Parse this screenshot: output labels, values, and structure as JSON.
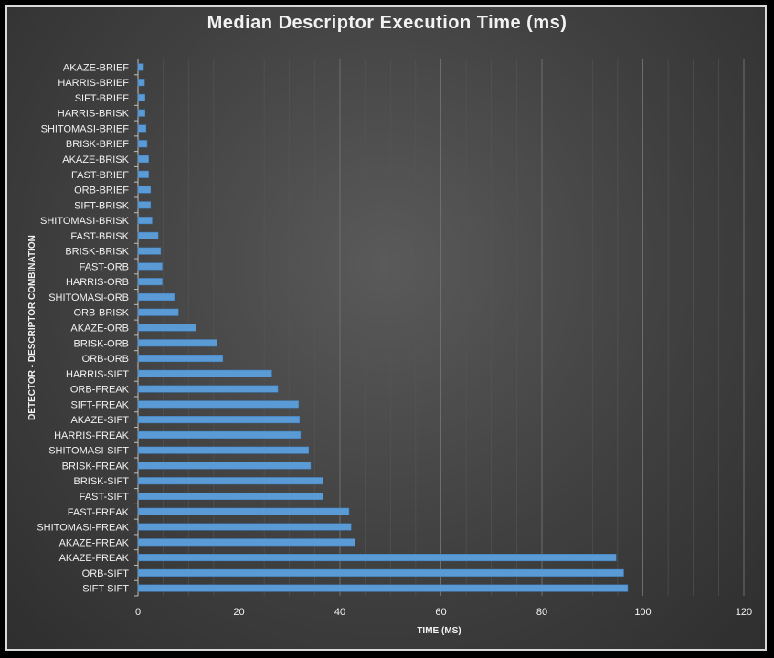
{
  "chart_data": {
    "type": "bar",
    "orientation": "horizontal",
    "title": "Median Descriptor Execution Time (ms)",
    "xlabel": "TIME (MS)",
    "ylabel": "DETECTOR - DESCRIPTOR COMBINATION",
    "xlim": [
      0,
      120
    ],
    "xticks": [
      0,
      20,
      40,
      60,
      80,
      100,
      120
    ],
    "grid": true,
    "legend": "none",
    "bar_color": "#5b9bd5",
    "categories": [
      "AKAZE-BRIEF",
      "HARRIS-BRIEF",
      "SIFT-BRIEF",
      "HARRIS-BRISK",
      "SHITOMASI-BRIEF",
      "BRISK-BRIEF",
      "AKAZE-BRISK",
      "FAST-BRIEF",
      "ORB-BRIEF",
      "SIFT-BRISK",
      "SHITOMASI-BRISK",
      "FAST-BRISK",
      "BRISK-BRISK",
      "FAST-ORB",
      "HARRIS-ORB",
      "SHITOMASI-ORB",
      "ORB-BRISK",
      "AKAZE-ORB",
      "BRISK-ORB",
      "ORB-ORB",
      "HARRIS-SIFT",
      "ORB-FREAK",
      "SIFT-FREAK",
      "AKAZE-SIFT",
      "HARRIS-FREAK",
      "SHITOMASI-SIFT",
      "BRISK-FREAK",
      "BRISK-SIFT",
      "FAST-SIFT",
      "FAST-FREAK",
      "SHITOMASI-FREAK",
      "AKAZE-FREAK",
      "AKAZE-FREAK",
      "ORB-SIFT",
      "SIFT-SIFT"
    ],
    "values": [
      1.1,
      1.3,
      1.4,
      1.4,
      1.6,
      1.8,
      2.1,
      2.1,
      2.5,
      2.5,
      2.8,
      4.0,
      4.5,
      4.8,
      4.8,
      7.2,
      8.0,
      11.5,
      15.7,
      16.8,
      26.5,
      27.7,
      31.8,
      32.0,
      32.2,
      33.8,
      34.2,
      36.7,
      36.7,
      41.8,
      42.2,
      43.0,
      94.7,
      96.2,
      97.0
    ]
  }
}
